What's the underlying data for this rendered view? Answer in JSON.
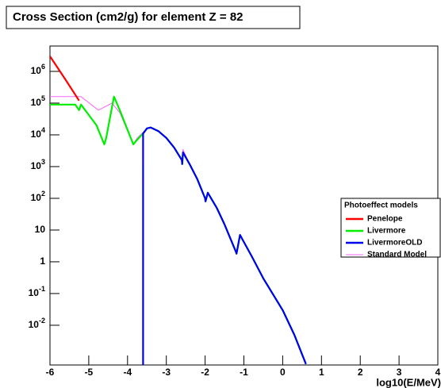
{
  "chart_data": {
    "type": "line",
    "title": "Cross Section (cm2/g) for element Z = 82",
    "xlabel": "log10(E/MeV)",
    "xlim": [
      -6,
      4
    ],
    "xticks": [
      -6,
      -5,
      -4,
      -3,
      -2,
      -1,
      0,
      1,
      2,
      3,
      4
    ],
    "ylim": [
      0.00056,
      6300000
    ],
    "ylog": true,
    "yticks": [
      {
        "value": 1000000,
        "label": "10^6"
      },
      {
        "value": 100000,
        "label": "10^5"
      },
      {
        "value": 10000,
        "label": "10^4"
      },
      {
        "value": 1000,
        "label": "10^3"
      },
      {
        "value": 100,
        "label": "10^2"
      },
      10,
      1,
      {
        "value": 0.1,
        "label": "10^-1"
      },
      {
        "value": 0.01,
        "label": "10^-2"
      }
    ],
    "grid": false,
    "legend_title": "Photoeffect models",
    "legend": "right",
    "series": [
      {
        "name": "Penelope",
        "color": "#ff0000",
        "x": [
          -6,
          -5.6,
          -5.25
        ],
        "values": [
          3000000,
          550000,
          120000
        ]
      },
      {
        "name": "Livermore",
        "color": "#00ee00",
        "x": [
          -6,
          -5.35,
          -5.25,
          -5.2,
          -4.8,
          -4.6,
          -4.55,
          -4.35,
          -4.2,
          -3.85,
          -3.8,
          -3.6,
          -3.5,
          -3.4,
          -3.2,
          -3.0,
          -2.8,
          -2.6,
          -2.59,
          -2.57,
          -2.4,
          -2.2,
          -2.0,
          -1.99,
          -1.93,
          -1.7,
          -1.5,
          -1.2,
          -1.19,
          -1.1,
          -0.8,
          -0.5,
          0,
          0.3,
          0.6
        ],
        "values": [
          90000,
          90000,
          60000,
          90000,
          20000,
          5000,
          8000,
          160000,
          60000,
          5000,
          6000,
          11000,
          16000,
          17000,
          13000,
          8000,
          4000,
          1600,
          1200,
          2800,
          1200,
          400,
          100,
          80,
          150,
          50,
          15,
          2,
          1.8,
          7,
          1.5,
          0.3,
          0.03,
          0.005,
          0.0006
        ]
      },
      {
        "name": "LivermoreOLD",
        "color": "#0000ee",
        "x": [
          -3.6,
          -3.6,
          -3.5,
          -3.4,
          -3.2,
          -3.0,
          -2.8,
          -2.6,
          -2.59,
          -2.57,
          -2.4,
          -2.2,
          -2.0,
          -1.99,
          -1.93,
          -1.7,
          -1.5,
          -1.2,
          -1.19,
          -1.1,
          -0.8,
          -0.5,
          0,
          0.3,
          0.6
        ],
        "values": [
          0.0001,
          11000,
          16000,
          17000,
          13000,
          8000,
          4000,
          1600,
          1200,
          2800,
          1200,
          400,
          100,
          80,
          150,
          50,
          15,
          2,
          1.8,
          7,
          1.5,
          0.3,
          0.03,
          0.005,
          0.0006
        ]
      },
      {
        "name": "Standard Model",
        "color": "#ff66ff",
        "x": [
          -6,
          -5.2,
          -4.75,
          -4.4,
          -4.2,
          -3.85,
          -3.75,
          -3.6,
          -3.5,
          -3.4,
          -3.2,
          -3.0,
          -2.8,
          -2.6,
          -2.59,
          -2.57,
          -2.4,
          -2.2,
          -2.0,
          -1.99,
          -1.93,
          -1.7,
          -1.5,
          -1.2,
          -1.19,
          -1.1,
          -0.8,
          -0.5,
          0,
          0.3,
          0.6
        ],
        "values": [
          160000,
          160000,
          60000,
          100000,
          50000,
          5000,
          8000,
          12000,
          16000,
          17000,
          13000,
          8000,
          4000,
          1600,
          1200,
          3500,
          1200,
          400,
          100,
          80,
          150,
          50,
          15,
          2,
          1.8,
          7,
          1.5,
          0.3,
          0.03,
          0.005,
          0.0006
        ]
      }
    ]
  }
}
